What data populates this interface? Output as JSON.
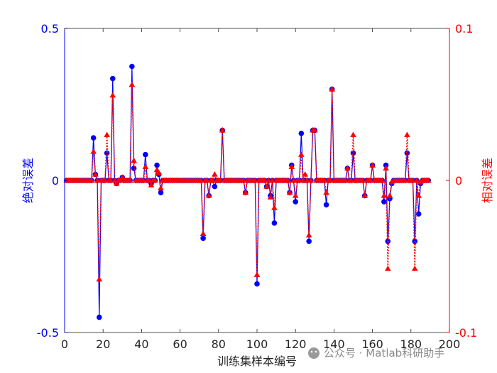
{
  "chart_data": {
    "type": "line",
    "xlabel": "训练集样本编号",
    "ylabel_left": "绝对误差",
    "ylabel_right": "相对误差",
    "xlim": [
      0,
      200
    ],
    "ylim_left": [
      -0.5,
      0.5
    ],
    "ylim_right": [
      -0.1,
      0.1
    ],
    "xticks": [
      0,
      20,
      40,
      60,
      80,
      100,
      120,
      140,
      160,
      180,
      200
    ],
    "yticks_left": [
      -0.5,
      0,
      0.5
    ],
    "yticks_right": [
      -0.1,
      0,
      0.1
    ],
    "xtick_labels": [
      "0",
      "20",
      "40",
      "60",
      "80",
      "100",
      "120",
      "140",
      "160",
      "180",
      "200"
    ],
    "ytick_labels_left": [
      "-0.5",
      "0",
      "0.5"
    ],
    "ytick_labels_right": [
      "-0.1",
      "0",
      "0.1"
    ],
    "grid": false,
    "colors": {
      "left": "#0000ff",
      "right": "#ff0000",
      "axis": "#262626"
    },
    "series": [
      {
        "axis": "left",
        "marker": "circle",
        "color": "#0000ff",
        "x": [
          15,
          16,
          17,
          18,
          22,
          25,
          27,
          30,
          35,
          36,
          42,
          45,
          48,
          49,
          50,
          72,
          75,
          78,
          82,
          94,
          100,
          105,
          107,
          109,
          117,
          118,
          120,
          123,
          125,
          127,
          129,
          130,
          136,
          139,
          147,
          150,
          156,
          160,
          166,
          167,
          168,
          169,
          170,
          178,
          182,
          184,
          185
        ],
        "values": [
          0.14,
          0.02,
          0.0,
          -0.45,
          0.09,
          0.335,
          -0.01,
          0.01,
          0.375,
          0.04,
          0.085,
          -0.01,
          0.05,
          0.02,
          -0.04,
          -0.19,
          -0.05,
          -0.02,
          0.165,
          -0.04,
          -0.34,
          -0.02,
          -0.05,
          -0.14,
          -0.04,
          0.05,
          -0.07,
          0.155,
          0.0,
          -0.2,
          0.165,
          0.165,
          -0.08,
          0.3,
          0.04,
          0.09,
          -0.05,
          0.05,
          -0.07,
          0.05,
          -0.2,
          -0.06,
          -0.01,
          0.09,
          -0.2,
          -0.11,
          -0.01
        ]
      },
      {
        "axis": "right",
        "marker": "triangle",
        "color": "#ff0000",
        "x": [
          15,
          16,
          17,
          18,
          22,
          25,
          27,
          30,
          35,
          36,
          42,
          45,
          48,
          49,
          50,
          72,
          75,
          78,
          82,
          94,
          100,
          105,
          107,
          109,
          117,
          118,
          120,
          123,
          125,
          127,
          129,
          130,
          136,
          139,
          147,
          150,
          156,
          160,
          166,
          167,
          168,
          169,
          170,
          178,
          182,
          184,
          185
        ],
        "values": [
          0.019,
          0.004,
          0.0,
          -0.065,
          0.03,
          0.056,
          -0.002,
          0.002,
          0.063,
          0.013,
          0.009,
          -0.003,
          0.007,
          0.005,
          -0.005,
          -0.035,
          -0.01,
          0.004,
          0.033,
          -0.008,
          -0.062,
          -0.004,
          -0.011,
          -0.018,
          -0.008,
          0.009,
          -0.01,
          0.017,
          0.004,
          -0.036,
          0.033,
          0.033,
          -0.008,
          0.06,
          0.008,
          0.03,
          -0.01,
          0.01,
          -0.01,
          0.008,
          -0.058,
          -0.01,
          -0.001,
          0.03,
          -0.058,
          -0.01,
          -0.001
        ]
      }
    ]
  },
  "watermark": "公众号 · Matlab科研助手"
}
